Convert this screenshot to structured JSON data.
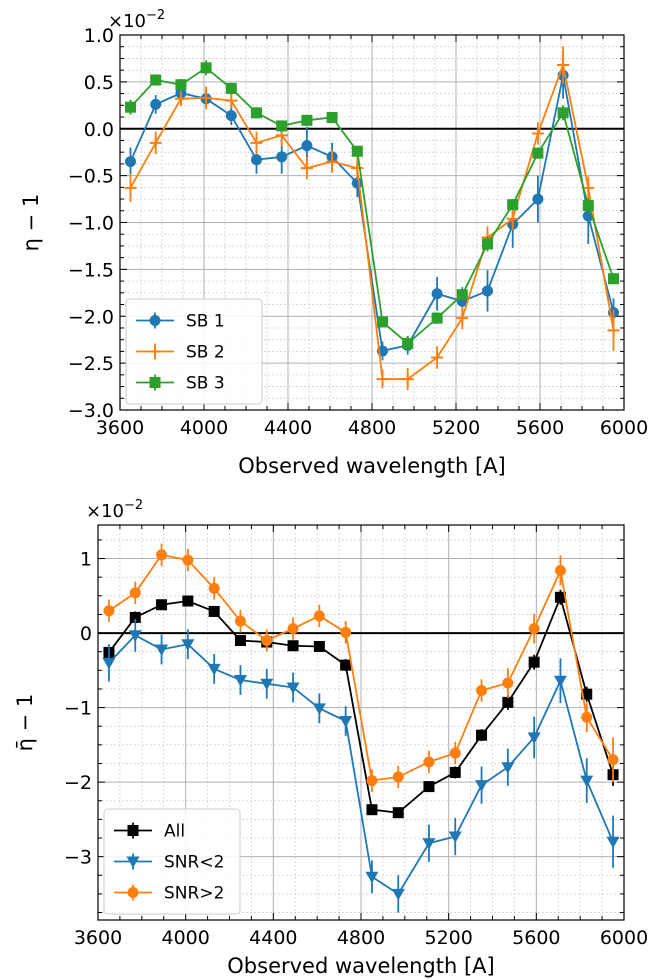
{
  "chart_data": [
    {
      "type": "line",
      "xlabel": "Observed wavelength [A]",
      "ylabel": "η − 1",
      "y_scale_label": "×10",
      "y_scale_exponent": "−2",
      "xlim": [
        3600,
        6000
      ],
      "ylim": [
        -3.0,
        1.0
      ],
      "xticks": [
        3600,
        4000,
        4400,
        4800,
        5200,
        5600,
        6000
      ],
      "xtick_labels": [
        "3600",
        "4000",
        "4400",
        "4800",
        "5200",
        "5600",
        "6000"
      ],
      "yticks": [
        -3.0,
        -2.5,
        -2.0,
        -1.5,
        -1.0,
        -0.5,
        0.0,
        0.5,
        1.0
      ],
      "ytick_labels": [
        "−3.0",
        "−2.5",
        "−2.0",
        "−1.5",
        "−1.0",
        "−0.5",
        "0.0",
        "0.5",
        "1.0"
      ],
      "reference_line_y": 0,
      "grid": true,
      "legend_position": "lower-left",
      "x": [
        3650,
        3770,
        3890,
        4010,
        4130,
        4250,
        4370,
        4490,
        4610,
        4730,
        4850,
        4970,
        5110,
        5230,
        5350,
        5470,
        5590,
        5710,
        5830,
        5950
      ],
      "series": [
        {
          "name": "SB 1",
          "color": "#1f77b4",
          "marker": "circle",
          "values": [
            -0.35,
            0.26,
            0.38,
            0.32,
            0.14,
            -0.33,
            -0.3,
            -0.18,
            -0.3,
            -0.58,
            -2.37,
            -2.31,
            -1.76,
            -1.84,
            -1.73,
            -1.02,
            -0.75,
            0.57,
            -0.93,
            -1.96
          ],
          "errors": [
            0.15,
            0.1,
            0.1,
            0.1,
            0.1,
            0.15,
            0.18,
            0.2,
            0.15,
            0.15,
            0.1,
            0.1,
            0.18,
            0.15,
            0.22,
            0.25,
            0.25,
            0.25,
            0.3,
            0.15
          ]
        },
        {
          "name": "SB 2",
          "color": "#ff7f0e",
          "marker": "plus",
          "values": [
            -0.63,
            -0.15,
            0.32,
            0.33,
            0.3,
            -0.15,
            -0.07,
            -0.42,
            -0.35,
            -0.42,
            -2.67,
            -2.67,
            -2.44,
            -2.02,
            -1.16,
            -0.96,
            -0.05,
            0.68,
            -0.63,
            -2.15
          ],
          "errors": [
            0.15,
            0.12,
            0.08,
            0.12,
            0.08,
            0.12,
            0.12,
            0.12,
            0.12,
            0.12,
            0.1,
            0.12,
            0.12,
            0.12,
            0.12,
            0.12,
            0.12,
            0.2,
            0.12,
            0.22
          ]
        },
        {
          "name": "SB 3",
          "color": "#2ca02c",
          "marker": "square",
          "values": [
            0.23,
            0.52,
            0.47,
            0.65,
            0.43,
            0.17,
            0.03,
            0.09,
            0.12,
            -0.24,
            -2.06,
            -2.29,
            -2.02,
            -1.77,
            -1.23,
            -0.81,
            -0.26,
            0.17,
            -0.82,
            -1.6
          ],
          "errors": [
            0.08,
            0.06,
            0.06,
            0.08,
            0.06,
            0.06,
            0.06,
            0.06,
            0.06,
            0.06,
            0.06,
            0.08,
            0.06,
            0.06,
            0.08,
            0.06,
            0.06,
            0.08,
            0.06,
            0.06
          ]
        }
      ]
    },
    {
      "type": "line",
      "xlabel": "Observed wavelength [A]",
      "ylabel": "η̄ − 1",
      "y_scale_label": "×10",
      "y_scale_exponent": "−2",
      "xlim": [
        3600,
        6000
      ],
      "ylim": [
        -3.85,
        1.45
      ],
      "xticks": [
        3600,
        4000,
        4400,
        4800,
        5200,
        5600,
        6000
      ],
      "xtick_labels": [
        "3600",
        "4000",
        "4400",
        "4800",
        "5200",
        "5600",
        "6000"
      ],
      "yticks": [
        -3,
        -2,
        -1,
        0,
        1
      ],
      "ytick_labels": [
        "−3",
        "−2",
        "−1",
        "0",
        "1"
      ],
      "reference_line_y": 0,
      "grid": true,
      "legend_position": "lower-left",
      "x": [
        3650,
        3770,
        3890,
        4010,
        4130,
        4250,
        4370,
        4490,
        4610,
        4730,
        4850,
        4970,
        5110,
        5230,
        5350,
        5470,
        5590,
        5710,
        5830,
        5950
      ],
      "series": [
        {
          "name": "All",
          "color": "#000000",
          "marker": "square",
          "values": [
            -0.26,
            0.21,
            0.38,
            0.43,
            0.29,
            -0.1,
            -0.12,
            -0.17,
            -0.18,
            -0.43,
            -2.37,
            -2.41,
            -2.06,
            -1.87,
            -1.37,
            -0.93,
            -0.39,
            0.48,
            -0.82,
            -1.9
          ],
          "errors": [
            0.08,
            0.08,
            0.06,
            0.06,
            0.06,
            0.06,
            0.06,
            0.06,
            0.06,
            0.08,
            0.06,
            0.06,
            0.06,
            0.08,
            0.08,
            0.1,
            0.1,
            0.1,
            0.1,
            0.15
          ]
        },
        {
          "name": "SNR<2",
          "color": "#1f77b4",
          "marker": "triangle-down",
          "values": [
            -0.4,
            -0.03,
            -0.22,
            -0.15,
            -0.48,
            -0.63,
            -0.68,
            -0.73,
            -1.01,
            -1.18,
            -3.27,
            -3.5,
            -2.82,
            -2.73,
            -2.04,
            -1.8,
            -1.4,
            -0.64,
            -1.98,
            -2.8
          ],
          "errors": [
            0.25,
            0.22,
            0.2,
            0.2,
            0.2,
            0.2,
            0.2,
            0.2,
            0.2,
            0.2,
            0.22,
            0.25,
            0.25,
            0.25,
            0.25,
            0.25,
            0.28,
            0.3,
            0.3,
            0.35
          ]
        },
        {
          "name": "SNR>2",
          "color": "#ff7f0e",
          "marker": "circle",
          "values": [
            0.3,
            0.54,
            1.05,
            0.98,
            0.6,
            0.16,
            -0.1,
            0.06,
            0.23,
            0.01,
            -1.98,
            -1.93,
            -1.73,
            -1.61,
            -0.77,
            -0.67,
            0.06,
            0.84,
            -1.13,
            -1.7
          ],
          "errors": [
            0.15,
            0.15,
            0.15,
            0.15,
            0.15,
            0.15,
            0.15,
            0.15,
            0.15,
            0.15,
            0.15,
            0.15,
            0.15,
            0.15,
            0.15,
            0.2,
            0.2,
            0.2,
            0.2,
            0.3
          ]
        }
      ]
    }
  ]
}
